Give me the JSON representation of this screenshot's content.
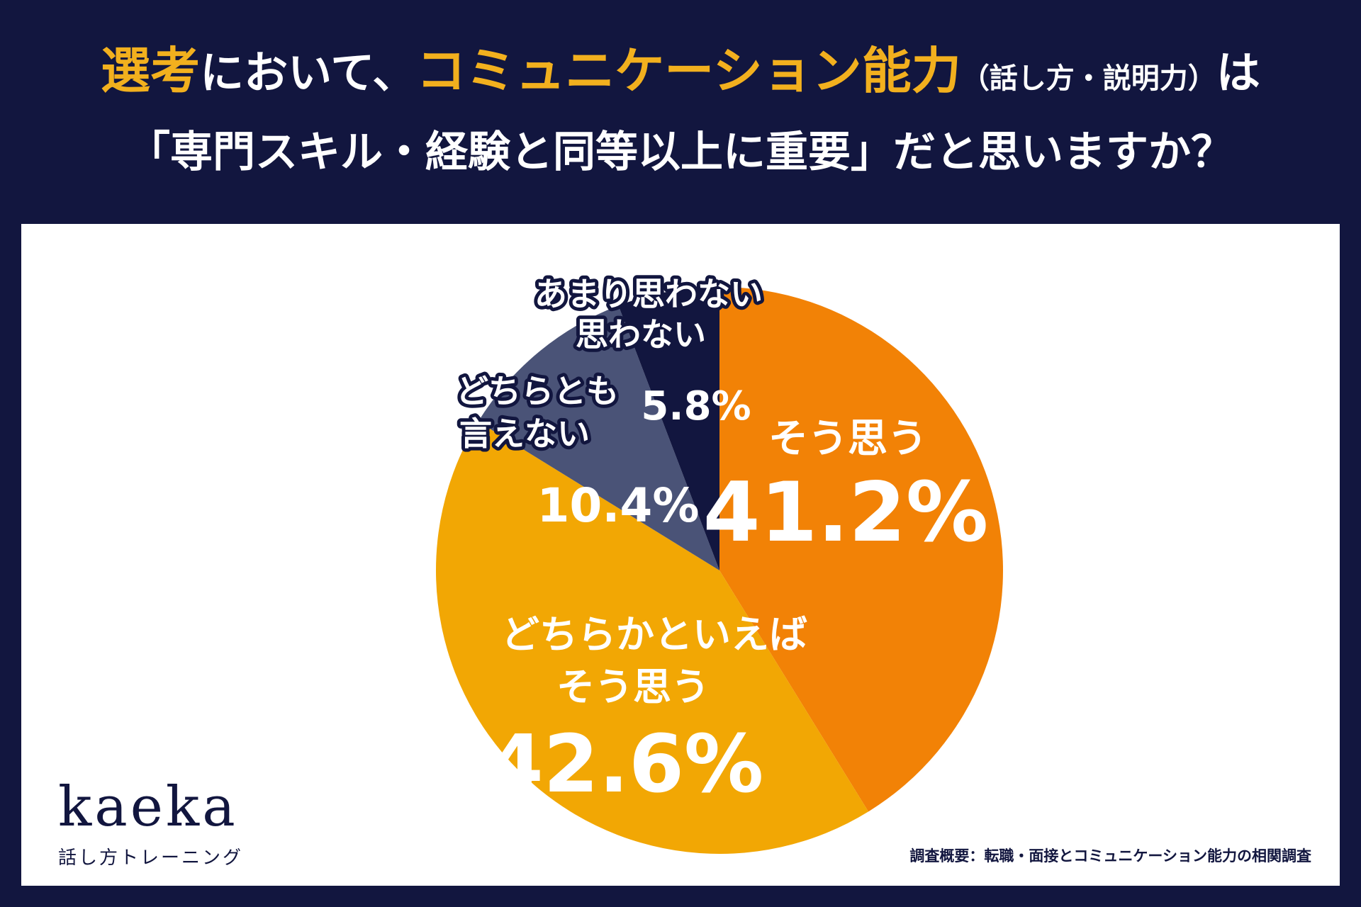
{
  "title": {
    "line1_a": "選考",
    "line1_b": "において、",
    "line1_c": "コミュニケーション能力",
    "line1_d": "（話し方・説明力）",
    "line1_e": "は",
    "line2": "「専門スキル・経験と同等以上に重要」だと思いますか？"
  },
  "chart_data": {
    "type": "pie",
    "start": "12 o'clock, clockwise",
    "slices": [
      {
        "label": [
          "そう思う"
        ],
        "value": 41.2,
        "value_label": "41.2%",
        "color": "#f28206"
      },
      {
        "label": [
          "どちらかといえば",
          "そう思う"
        ],
        "value": 42.6,
        "value_label": "42.6%",
        "color": "#f2a704"
      },
      {
        "label": [
          "どちらとも",
          "言えない"
        ],
        "value": 10.4,
        "value_label": "10.4%",
        "color": "#4a5377"
      },
      {
        "label": [
          "あまり思わない",
          "思わない"
        ],
        "value": 5.8,
        "value_label": "5.8%",
        "color": "#12163f"
      }
    ]
  },
  "logo": {
    "word": "kaeka",
    "sub": "話し方トレーニング"
  },
  "source": "調査概要：転職・面接とコミュニケーション能力の相関調査"
}
